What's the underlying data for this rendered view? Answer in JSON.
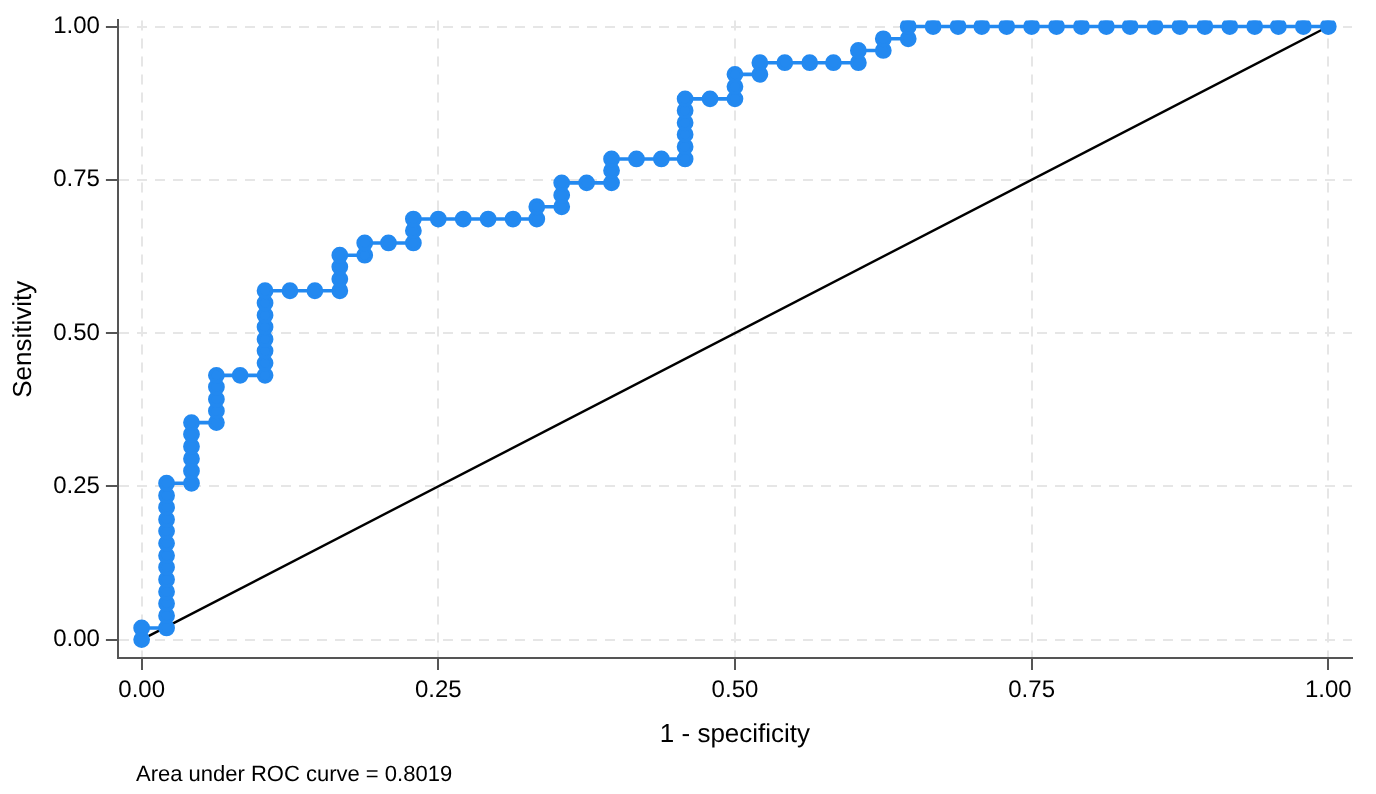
{
  "chart_data": {
    "type": "line",
    "xlabel": "1 - specificity",
    "ylabel": "Sensitivity",
    "xlim": [
      -0.02,
      1.02
    ],
    "ylim": [
      -0.03,
      1.01
    ],
    "xticks": [
      {
        "value": 0,
        "label": "0.00"
      },
      {
        "value": 0.25,
        "label": "0.25"
      },
      {
        "value": 0.5,
        "label": "0.50"
      },
      {
        "value": 0.75,
        "label": "0.75"
      },
      {
        "value": 1,
        "label": "1.00"
      }
    ],
    "yticks": [
      {
        "value": 0,
        "label": "0.00"
      },
      {
        "value": 0.25,
        "label": "0.25"
      },
      {
        "value": 0.5,
        "label": "0.50"
      },
      {
        "value": 0.75,
        "label": "0.75"
      },
      {
        "value": 1,
        "label": "1.00"
      }
    ],
    "grid": true,
    "legend": false,
    "line_style": "solid",
    "annotations": [
      "Area under ROC curve = 0.8019"
    ],
    "series": [
      {
        "marker": "circle",
        "color": "#2389f0",
        "x": [
          0,
          0,
          0.021,
          0.021,
          0.021,
          0.021,
          0.021,
          0.021,
          0.021,
          0.021,
          0.021,
          0.021,
          0.021,
          0.021,
          0.021,
          0.042,
          0.042,
          0.042,
          0.042,
          0.042,
          0.042,
          0.063,
          0.063,
          0.063,
          0.063,
          0.063,
          0.083,
          0.104,
          0.104,
          0.104,
          0.104,
          0.104,
          0.104,
          0.104,
          0.104,
          0.125,
          0.146,
          0.167,
          0.167,
          0.167,
          0.167,
          0.188,
          0.188,
          0.208,
          0.229,
          0.229,
          0.229,
          0.25,
          0.271,
          0.292,
          0.313,
          0.333,
          0.333,
          0.354,
          0.354,
          0.354,
          0.375,
          0.396,
          0.396,
          0.396,
          0.417,
          0.438,
          0.458,
          0.458,
          0.458,
          0.458,
          0.458,
          0.458,
          0.479,
          0.5,
          0.5,
          0.5,
          0.521,
          0.521,
          0.542,
          0.563,
          0.583,
          0.604,
          0.604,
          0.625,
          0.625,
          0.646,
          0.646,
          0.667,
          0.688,
          0.708,
          0.729,
          0.75,
          0.771,
          0.792,
          0.813,
          0.833,
          0.854,
          0.875,
          0.896,
          0.917,
          0.938,
          0.958,
          0.979,
          1
        ],
        "values": [
          0,
          0.019,
          0.019,
          0.039,
          0.059,
          0.078,
          0.098,
          0.118,
          0.137,
          0.157,
          0.177,
          0.196,
          0.216,
          0.235,
          0.255,
          0.255,
          0.275,
          0.295,
          0.315,
          0.335,
          0.354,
          0.354,
          0.373,
          0.392,
          0.412,
          0.431,
          0.431,
          0.431,
          0.451,
          0.471,
          0.49,
          0.51,
          0.529,
          0.549,
          0.569,
          0.569,
          0.569,
          0.569,
          0.588,
          0.608,
          0.627,
          0.627,
          0.647,
          0.647,
          0.647,
          0.667,
          0.686,
          0.686,
          0.686,
          0.686,
          0.686,
          0.686,
          0.706,
          0.706,
          0.725,
          0.745,
          0.745,
          0.745,
          0.765,
          0.784,
          0.784,
          0.784,
          0.784,
          0.804,
          0.824,
          0.843,
          0.863,
          0.882,
          0.882,
          0.882,
          0.902,
          0.922,
          0.922,
          0.941,
          0.941,
          0.941,
          0.941,
          0.941,
          0.961,
          0.961,
          0.98,
          0.98,
          1,
          1,
          1,
          1,
          1,
          1,
          1,
          1,
          1,
          1,
          1,
          1,
          1,
          1,
          1,
          1,
          1,
          1
        ]
      },
      {
        "marker": "none",
        "color": "#000000",
        "x": [
          0,
          1
        ],
        "values": [
          0,
          1
        ]
      }
    ]
  }
}
